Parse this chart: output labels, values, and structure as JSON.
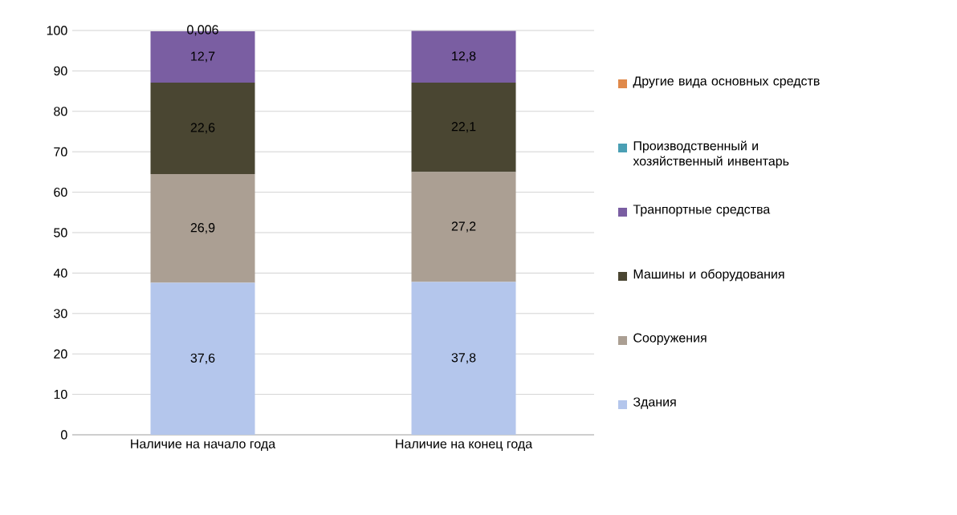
{
  "chart_data": {
    "type": "bar",
    "stacked": true,
    "categories": [
      "Наличие на начало года",
      "Наличие на конец года"
    ],
    "series": [
      {
        "name": "Здания",
        "color": "#b4c6ec",
        "values": [
          37.6,
          37.8
        ],
        "value_labels": [
          "37,6",
          "37,8"
        ]
      },
      {
        "name": "Сооружения",
        "color": "#ab9f93",
        "values": [
          26.9,
          27.2
        ],
        "value_labels": [
          "26,9",
          "27,2"
        ]
      },
      {
        "name": "Машины и оборудования",
        "color": "#4a4632",
        "values": [
          22.6,
          22.1
        ],
        "value_labels": [
          "22,6",
          "22,1"
        ]
      },
      {
        "name": "Транпортные средства",
        "color": "#7a5ea2",
        "values": [
          12.7,
          12.8
        ],
        "value_labels": [
          "12,7",
          "12,8"
        ]
      },
      {
        "name": "Производственный и хозяйственный инвентарь",
        "color": "#4a9fb4",
        "values": [
          null,
          null
        ],
        "value_labels": [
          null,
          null
        ]
      },
      {
        "name": "Другие вида  основных средств",
        "color": "#e0894a",
        "values": [
          0.006,
          null
        ],
        "value_labels": [
          "0,006",
          null
        ]
      }
    ],
    "ylim": [
      0,
      100
    ],
    "yticks": [
      0,
      10,
      20,
      30,
      40,
      50,
      60,
      70,
      80,
      90,
      100
    ],
    "grid": "y",
    "legend": "right"
  }
}
